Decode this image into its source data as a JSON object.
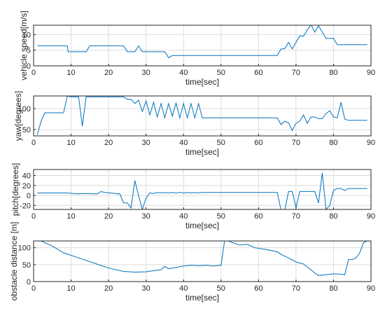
{
  "chart_data": [
    {
      "type": "line",
      "ylabel": "vehicle speed[m/s]",
      "xlabel": "time[sec]",
      "xlim": [
        0,
        90
      ],
      "ylim": [
        0,
        13
      ],
      "xticks": [
        0,
        10,
        20,
        30,
        40,
        50,
        60,
        70,
        80,
        90
      ],
      "yticks": [
        0,
        5,
        10
      ],
      "grid": true,
      "color": "#0072bd",
      "series": [
        {
          "x": [
            1,
            9,
            9.2,
            14,
            15,
            24,
            25,
            27,
            28,
            29,
            35,
            36,
            37,
            65,
            66,
            67,
            68,
            69,
            70,
            71,
            72,
            73,
            74,
            75,
            76,
            77,
            78,
            79,
            80,
            81,
            82,
            89
          ],
          "y": [
            6.4,
            6.4,
            4.5,
            4.5,
            6.4,
            6.4,
            4.5,
            4.5,
            6.4,
            4.5,
            4.5,
            2.6,
            3.3,
            3.3,
            5.4,
            5.5,
            7.5,
            5.4,
            7.5,
            9.6,
            9.5,
            11.5,
            13.2,
            10.8,
            12.8,
            10.8,
            8.8,
            8.8,
            8.8,
            6.8,
            6.8,
            6.8
          ]
        }
      ]
    },
    {
      "type": "line",
      "ylabel": "yaw[degrees]",
      "xlabel": "time[sec]",
      "xlim": [
        0,
        90
      ],
      "ylim": [
        35,
        130
      ],
      "xticks": [
        0,
        10,
        20,
        30,
        40,
        50,
        60,
        70,
        80,
        90
      ],
      "yticks": [
        50,
        100
      ],
      "grid": true,
      "color": "#0072bd",
      "series": [
        {
          "x": [
            1,
            2,
            3,
            8,
            9,
            10,
            12,
            13,
            14,
            24,
            25,
            26,
            27,
            28,
            29,
            30,
            31,
            32,
            33,
            34,
            35,
            36,
            37,
            38,
            39,
            40,
            41,
            42,
            43,
            44,
            45,
            65,
            66,
            67,
            68,
            69,
            70,
            71,
            72,
            73,
            74,
            75,
            76,
            77,
            78,
            79,
            80,
            81,
            82,
            83,
            84,
            89
          ],
          "y": [
            38,
            70,
            90,
            90,
            130,
            128,
            128,
            58,
            128,
            128,
            122,
            122,
            112,
            120,
            93,
            118,
            85,
            115,
            80,
            112,
            78,
            112,
            82,
            113,
            78,
            112,
            78,
            112,
            78,
            112,
            78,
            78,
            62,
            70,
            66,
            48,
            65,
            70,
            85,
            65,
            80,
            80,
            76,
            76,
            88,
            95,
            80,
            78,
            115,
            75,
            72,
            72
          ]
        }
      ]
    },
    {
      "type": "line",
      "ylabel": "pitch[degrees]",
      "xlabel": "time[sec]",
      "xlim": [
        0,
        90
      ],
      "ylim": [
        -28,
        52
      ],
      "xticks": [
        0,
        10,
        20,
        30,
        40,
        50,
        60,
        70,
        80,
        90
      ],
      "yticks": [
        -20,
        0,
        20,
        40
      ],
      "grid": true,
      "color": "#0072bd",
      "series": [
        {
          "x": [
            1,
            9,
            12,
            13,
            17,
            18,
            19,
            23,
            24,
            25,
            26,
            27,
            28,
            29,
            30,
            31,
            32,
            33,
            34,
            35,
            36,
            37,
            38,
            39,
            40,
            41,
            42,
            43,
            44,
            45,
            46,
            47,
            65,
            66,
            67,
            68,
            69,
            70,
            71,
            72,
            73,
            74,
            75,
            76,
            77,
            78,
            79,
            80,
            81,
            82,
            83,
            84,
            89
          ],
          "y": [
            5,
            5,
            3,
            4,
            3,
            8,
            6,
            3,
            -15,
            -15,
            -25,
            30,
            0,
            -28,
            -5,
            5,
            4,
            6,
            5,
            6,
            5,
            6,
            5,
            6,
            5,
            6,
            5,
            6,
            5,
            6,
            6,
            6,
            6,
            -30,
            -30,
            8,
            8,
            -25,
            8,
            8,
            8,
            8,
            8,
            -15,
            45,
            -28,
            -20,
            10,
            14,
            14,
            10,
            14,
            14
          ]
        }
      ]
    },
    {
      "type": "line",
      "ylabel": "obstacle distance [m]",
      "xlabel": "time[sec]",
      "xlim": [
        0,
        90
      ],
      "ylim": [
        0,
        120
      ],
      "xticks": [
        0,
        10,
        20,
        30,
        40,
        50,
        60,
        70,
        80,
        90
      ],
      "yticks": [
        0,
        50,
        100
      ],
      "grid": true,
      "color": "#0072bd",
      "series": [
        {
          "x": [
            1,
            2,
            5,
            8,
            12,
            16,
            20,
            24,
            27,
            30,
            32,
            34,
            35,
            36,
            37,
            38,
            39,
            40,
            42,
            44,
            46,
            48,
            50,
            51,
            53,
            55,
            57,
            59,
            62,
            65,
            66,
            68,
            70,
            72,
            74,
            75,
            76,
            78,
            80,
            82,
            83,
            84,
            85,
            86,
            87,
            88,
            89
          ],
          "y": [
            120,
            120,
            105,
            85,
            70,
            55,
            40,
            30,
            28,
            29,
            32,
            35,
            45,
            38,
            40,
            42,
            44,
            46,
            48,
            47,
            48,
            46,
            48,
            125,
            115,
            108,
            110,
            100,
            95,
            88,
            80,
            70,
            58,
            52,
            35,
            25,
            18,
            20,
            23,
            22,
            20,
            65,
            65,
            70,
            85,
            115,
            120
          ]
        }
      ]
    }
  ]
}
